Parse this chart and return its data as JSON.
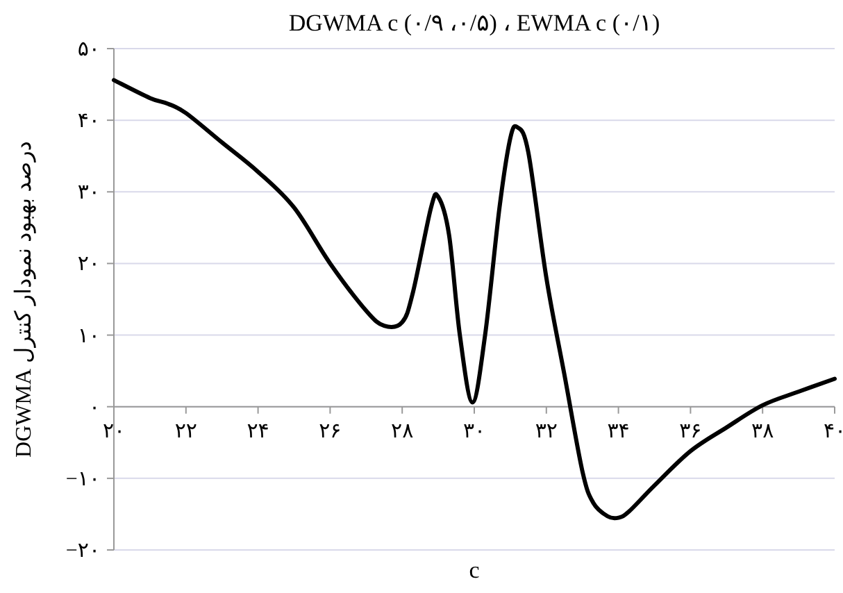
{
  "chart_data": {
    "type": "line",
    "title": "DGWMA c (۰/۹ ،۰/۵) ، EWMA c (۰/۱)",
    "xlabel": "c",
    "ylabel": "درصد بهبود نمودار کنترل DGWMA",
    "xlim": [
      20,
      40
    ],
    "ylim": [
      -20,
      50
    ],
    "xticks": [
      {
        "value": 20,
        "label": "۲۰"
      },
      {
        "value": 22,
        "label": "۲۲"
      },
      {
        "value": 24,
        "label": "۲۴"
      },
      {
        "value": 26,
        "label": "۲۶"
      },
      {
        "value": 28,
        "label": "۲۸"
      },
      {
        "value": 30,
        "label": "۳۰"
      },
      {
        "value": 32,
        "label": "۳۲"
      },
      {
        "value": 34,
        "label": "۳۴"
      },
      {
        "value": 36,
        "label": "۳۶"
      },
      {
        "value": 38,
        "label": "۳۸"
      },
      {
        "value": 40,
        "label": "۴۰"
      }
    ],
    "yticks": [
      {
        "value": -20,
        "label": "−۲۰"
      },
      {
        "value": -10,
        "label": "−۱۰"
      },
      {
        "value": 0,
        "label": "۰"
      },
      {
        "value": 10,
        "label": "۱۰"
      },
      {
        "value": 20,
        "label": "۲۰"
      },
      {
        "value": 30,
        "label": "۳۰"
      },
      {
        "value": 40,
        "label": "۴۰"
      },
      {
        "value": 50,
        "label": "۵۰"
      }
    ],
    "grid": "y",
    "series": [
      {
        "color": "#000000",
        "x": [
          20,
          21,
          21.5,
          22,
          23,
          24,
          25,
          26,
          27,
          27.5,
          28,
          28.3,
          28.8,
          29,
          29.3,
          29.6,
          29.95,
          30.3,
          30.7,
          31,
          31.2,
          31.5,
          32,
          32.5,
          33,
          33.3,
          33.7,
          34,
          34.3,
          35,
          36,
          37,
          38,
          39,
          40
        ],
        "values": [
          45.6,
          43.1,
          42.3,
          41,
          36.9,
          32.8,
          27.8,
          20,
          13.4,
          11.3,
          11.8,
          16,
          27.8,
          29.3,
          24,
          10,
          0.6,
          10,
          27.8,
          37.5,
          39,
          35.5,
          18,
          4.5,
          -9,
          -13.4,
          -15.3,
          -15.5,
          -14.6,
          -11,
          -6.2,
          -2.9,
          0.2,
          2.1,
          3.9
        ]
      }
    ]
  }
}
